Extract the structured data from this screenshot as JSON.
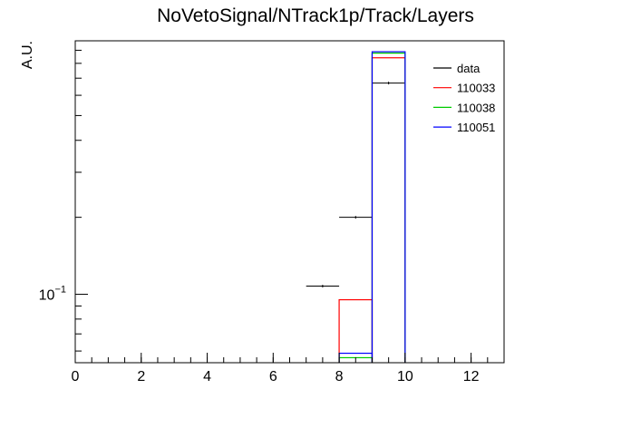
{
  "chart_data": {
    "type": "histogram",
    "title": "NoVetoSignal/NTrack1p/Track/Layers",
    "ylabel": "A.U.",
    "bins": [
      0,
      1,
      2,
      3,
      4,
      5,
      6,
      7,
      8,
      9,
      10,
      11,
      12,
      13
    ],
    "xlim": [
      0,
      13
    ],
    "xticks": [
      0,
      2,
      4,
      6,
      8,
      10,
      12
    ],
    "ylim": [
      0.054,
      0.98
    ],
    "log_y": true,
    "yticks": [
      {
        "value": 0.1,
        "label": "10",
        "exponent": "−1"
      }
    ],
    "legend": "top-right",
    "series": [
      {
        "name": "data",
        "color": "#000000",
        "style": "points",
        "values": [
          null,
          null,
          null,
          null,
          null,
          null,
          null,
          0.1076,
          0.2,
          0.67,
          null,
          null,
          null
        ]
      },
      {
        "name": "110033",
        "color": "#ff0000",
        "style": "step",
        "values": [
          null,
          null,
          null,
          null,
          null,
          null,
          null,
          null,
          0.0952,
          0.841,
          null,
          null,
          null
        ]
      },
      {
        "name": "110038",
        "color": "#00cc00",
        "style": "step",
        "values": [
          null,
          null,
          null,
          null,
          null,
          null,
          null,
          null,
          0.0565,
          0.877,
          null,
          null,
          null
        ]
      },
      {
        "name": "110051",
        "color": "#0000ff",
        "style": "step",
        "values": [
          null,
          null,
          null,
          null,
          null,
          null,
          null,
          null,
          0.0588,
          0.888,
          null,
          null,
          null
        ]
      }
    ]
  }
}
